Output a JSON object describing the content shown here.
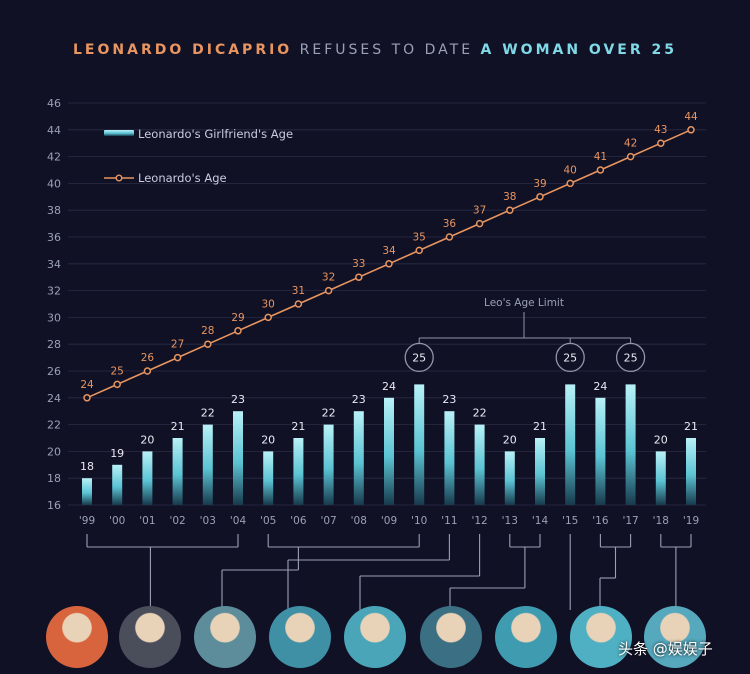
{
  "title": {
    "part1": "LEONARDO DICAPRIO",
    "part2": " REFUSES TO DATE ",
    "part3": "A WOMAN OVER 25"
  },
  "colors": {
    "background": "#111126",
    "orange": "#e8955f",
    "cyan": "#7fd9e6",
    "grid": "#2a2c45",
    "axis_text": "#9aa1b5"
  },
  "chart_data": {
    "type": "bar",
    "categories": [
      "'99",
      "'00",
      "'01",
      "'02",
      "'03",
      "'04",
      "'05",
      "'06",
      "'07",
      "'08",
      "'09",
      "'10",
      "'11",
      "'12",
      "'13",
      "'14",
      "'15",
      "'16",
      "'17",
      "'18",
      "'19"
    ],
    "series": [
      {
        "name": "Leonardo's Girlfriend's Age",
        "type": "bar",
        "values": [
          18,
          19,
          20,
          21,
          22,
          23,
          20,
          21,
          22,
          23,
          24,
          25,
          23,
          22,
          20,
          21,
          25,
          24,
          25,
          20,
          21
        ]
      },
      {
        "name": "Leonardo's Age",
        "type": "line",
        "values": [
          24,
          25,
          26,
          27,
          28,
          29,
          30,
          31,
          32,
          33,
          34,
          35,
          36,
          37,
          38,
          39,
          40,
          41,
          42,
          43,
          44
        ]
      }
    ],
    "ylim": [
      16,
      46
    ],
    "yticks": [
      16,
      18,
      20,
      22,
      24,
      26,
      28,
      30,
      32,
      34,
      36,
      38,
      40,
      42,
      44,
      46
    ],
    "grid": true,
    "legend_position": "top-left",
    "annotation": "Leo's Age Limit",
    "circled_values": [
      25
    ]
  },
  "watermark": "头条 @娱娱子",
  "photos": [
    {
      "name": "leonardo-photo",
      "bg": "#d8643d"
    },
    {
      "name": "girlfriend-photo-1",
      "bg": "#4a4d5a"
    },
    {
      "name": "girlfriend-photo-2",
      "bg": "#5d8d9b"
    },
    {
      "name": "girlfriend-photo-3",
      "bg": "#3f8fa5"
    },
    {
      "name": "girlfriend-photo-4",
      "bg": "#4aa5b8"
    },
    {
      "name": "girlfriend-photo-5",
      "bg": "#3a6f84"
    },
    {
      "name": "girlfriend-photo-6",
      "bg": "#3f9cb0"
    },
    {
      "name": "girlfriend-photo-7",
      "bg": "#4fb0c4"
    },
    {
      "name": "girlfriend-photo-8",
      "bg": "#56a8bd"
    }
  ]
}
